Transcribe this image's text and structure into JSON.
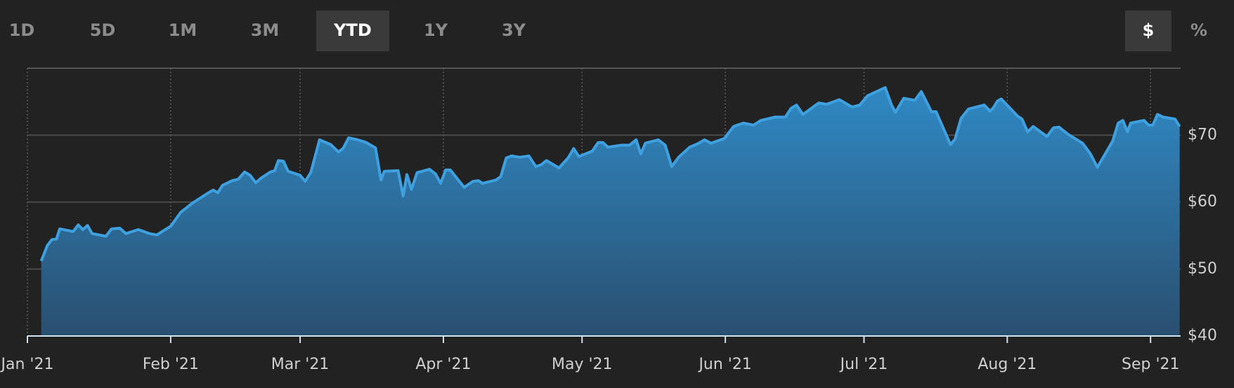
{
  "controls": {
    "ranges": [
      "1D",
      "5D",
      "1M",
      "3M",
      "YTD",
      "1Y",
      "3Y"
    ],
    "selected_range": "YTD",
    "units": [
      "$",
      "%"
    ],
    "selected_unit": "$"
  },
  "chart_data": {
    "type": "area",
    "color": "#3fa0e0",
    "x": [
      3,
      4.3,
      5.3,
      6.3,
      7,
      9.9,
      11,
      12,
      13,
      14,
      17,
      18.2,
      20,
      21.3,
      24,
      26.4,
      28,
      31,
      33.2,
      35.8,
      39.2,
      40.2,
      41.2,
      42.2,
      44.3,
      45.6,
      47,
      48.2,
      49.4,
      50.6,
      52.6,
      53.5,
      54.3,
      55.4,
      56.4,
      59,
      60.1,
      61.3,
      63.2,
      65.6,
      67.3,
      68.3,
      69.5,
      71.5,
      73.3,
      75.3,
      76.5,
      77.2,
      80.2,
      81.3,
      82.1,
      83.1,
      84.3,
      87,
      88.3,
      89.4,
      90.5,
      91.5,
      94.5,
      96.4,
      97.6,
      98.5,
      101.4,
      102.4,
      103.6,
      104.8,
      106.5,
      108.5,
      110,
      111.2,
      112.3,
      115,
      117,
      118.2,
      119.3,
      122.2,
      123.5,
      124.5,
      125.6,
      128.6,
      130.3,
      131.7,
      132.7,
      133.7,
      136.5,
      138,
      139.4,
      140.9,
      143.3,
      145,
      146.5,
      147.9,
      150.8,
      152.8,
      154.9,
      157.1,
      158.7,
      161.8,
      164,
      165.2,
      166.4,
      167.8,
      171.2,
      172.9,
      175.7,
      178.4,
      180.1,
      181.8,
      185.6,
      186.9,
      187.8,
      189.6,
      192,
      193.4,
      195.6,
      196.6,
      199.7,
      200.7,
      202,
      203.6,
      207,
      208.3,
      209,
      209.9,
      210.7,
      214.3,
      215.2,
      216.4,
      217.6,
      220.6,
      222,
      223.2,
      225.2,
      228.3,
      230,
      231.5,
      234.8,
      236,
      237,
      238,
      238.7,
      241.6,
      242.6,
      243.5,
      244.5,
      245.7,
      248.3,
      249.3
    ],
    "values": [
      51.2,
      53.5,
      54.4,
      54.5,
      56.0,
      55.6,
      56.6,
      55.9,
      56.5,
      55.3,
      54.9,
      56.0,
      56.1,
      55.3,
      55.9,
      55.3,
      55.1,
      56.4,
      58.5,
      59.9,
      61.4,
      61.8,
      61.4,
      62.5,
      63.2,
      63.4,
      64.5,
      64.0,
      62.9,
      63.6,
      64.5,
      64.7,
      66.2,
      66.1,
      64.6,
      64.0,
      63.1,
      64.4,
      69.3,
      68.6,
      67.5,
      68.0,
      69.6,
      69.3,
      68.9,
      68.1,
      63.3,
      64.6,
      64.7,
      60.9,
      64.1,
      61.9,
      64.4,
      64.9,
      64.2,
      62.8,
      64.8,
      64.8,
      62.2,
      63.1,
      63.2,
      62.8,
      63.3,
      63.8,
      66.6,
      66.9,
      66.7,
      66.9,
      65.3,
      65.6,
      66.2,
      65.1,
      66.6,
      68.0,
      66.8,
      67.6,
      68.9,
      68.9,
      68.2,
      68.5,
      68.5,
      69.3,
      67.2,
      68.8,
      69.3,
      68.5,
      65.3,
      66.7,
      68.2,
      68.7,
      69.3,
      68.8,
      69.5,
      71.3,
      71.8,
      71.5,
      72.2,
      72.7,
      72.7,
      74.0,
      74.5,
      73.1,
      74.8,
      74.6,
      75.3,
      74.2,
      74.5,
      75.9,
      77.1,
      74.6,
      73.4,
      75.5,
      75.2,
      76.5,
      73.5,
      73.5,
      68.6,
      69.4,
      72.5,
      73.9,
      74.5,
      73.6,
      74.1,
      75.1,
      75.4,
      72.8,
      72.4,
      70.5,
      71.3,
      69.8,
      71.1,
      71.2,
      70.1,
      68.8,
      67.2,
      65.2,
      69.1,
      71.8,
      72.2,
      70.5,
      71.8,
      72.2,
      71.5,
      71.5,
      73.1,
      72.7,
      72.4,
      71.3
    ],
    "xlim": [
      0,
      249.5
    ],
    "xticks": [
      {
        "value": 0,
        "label": "Jan '21"
      },
      {
        "value": 31,
        "label": "Feb '21"
      },
      {
        "value": 59,
        "label": "Mar '21"
      },
      {
        "value": 90,
        "label": "Apr '21"
      },
      {
        "value": 120,
        "label": "May '21"
      },
      {
        "value": 151,
        "label": "Jun '21"
      },
      {
        "value": 181,
        "label": "Jul '21"
      },
      {
        "value": 212,
        "label": "Aug '21"
      },
      {
        "value": 243,
        "label": "Sep '21"
      }
    ],
    "ylim": [
      40,
      80
    ],
    "yticks": [
      {
        "value": 40,
        "label": "$40"
      },
      {
        "value": 50,
        "label": "$50"
      },
      {
        "value": 60,
        "label": "$60"
      },
      {
        "value": 70,
        "label": "$70"
      }
    ],
    "grid": true
  }
}
